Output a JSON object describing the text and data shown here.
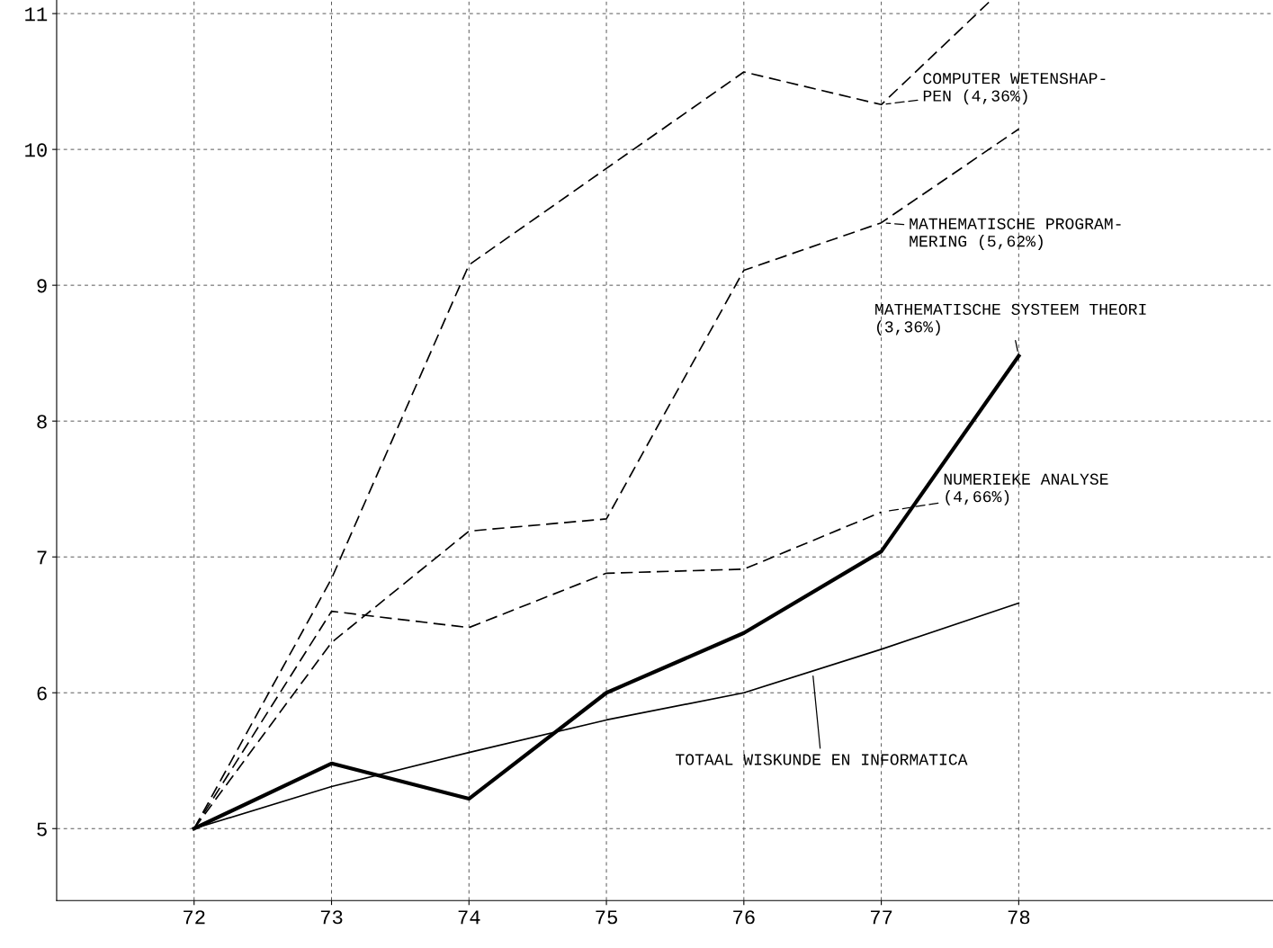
{
  "chart_data": {
    "type": "line",
    "xlim": [
      71,
      79.85
    ],
    "ylim": [
      4.47,
      11.1
    ],
    "xticks": [
      72,
      73,
      74,
      75,
      76,
      77,
      78
    ],
    "yticks": [
      5,
      6,
      7,
      8,
      9,
      10,
      11
    ],
    "grid": true,
    "marker": "none",
    "series": [
      {
        "name": "COMPUTER WETENSHAP-\nPEN (4,36%)",
        "color": "#000000",
        "line_style": "dashed",
        "x": [
          72,
          73,
          74,
          76,
          77,
          77.8
        ],
        "values": [
          5.0,
          6.84,
          9.15,
          10.57,
          10.33,
          11.1
        ]
      },
      {
        "name": "MATHEMATISCHE PROGRAM-\nMERING (5,62%)",
        "color": "#000000",
        "line_style": "dashed",
        "x": [
          72,
          73,
          74,
          75,
          76,
          77,
          78
        ],
        "values": [
          5.0,
          6.37,
          7.19,
          7.28,
          9.11,
          9.46,
          10.15
        ]
      },
      {
        "name": "NUMERIEKE ANALYSE\n(4,66%)",
        "color": "#000000",
        "line_style": "dashed",
        "x": [
          72,
          73,
          74,
          75,
          76,
          77
        ],
        "values": [
          5.0,
          6.6,
          6.48,
          6.88,
          6.91,
          7.33
        ]
      },
      {
        "name": "MATHEMATISCHE SYSTEEM THEORI\n(3,36%)",
        "color": "#000000",
        "line_style": "solid",
        "x": [
          72,
          73,
          74,
          75,
          76,
          77,
          78
        ],
        "values": [
          5.0,
          5.48,
          5.22,
          6.0,
          6.44,
          7.04,
          8.48
        ]
      },
      {
        "name": "TOTAAL WISKUNDE EN INFORMATICA",
        "color": "#000000",
        "line_style": "solid",
        "x": [
          72,
          73,
          74,
          75,
          76,
          77,
          78
        ],
        "values": [
          5.0,
          5.31,
          5.56,
          5.8,
          6.0,
          6.32,
          6.66
        ]
      }
    ]
  }
}
